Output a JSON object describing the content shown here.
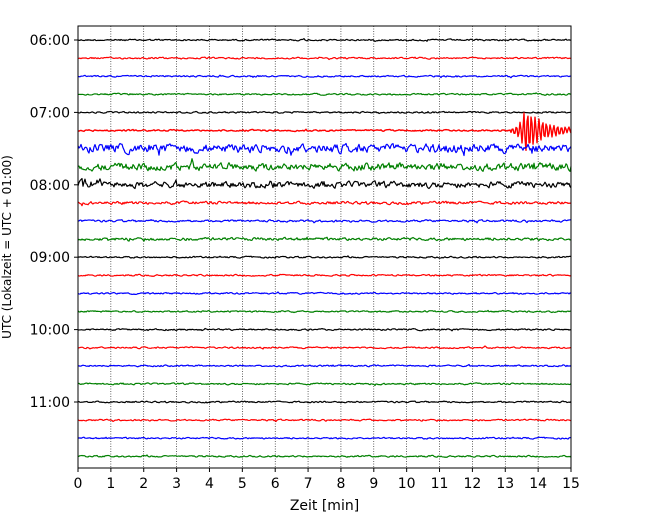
{
  "chart_data": {
    "type": "line",
    "title": "",
    "xlabel": "Zeit  [min]",
    "ylabel": "UTC (Lokalzeit = UTC + 01:00)",
    "xlim": [
      0,
      15
    ],
    "x_ticks": [
      "0",
      "1",
      "2",
      "3",
      "4",
      "5",
      "6",
      "7",
      "8",
      "9",
      "10",
      "11",
      "12",
      "13",
      "14",
      "15"
    ],
    "y_tick_labels": [
      "06:00",
      "07:00",
      "08:00",
      "09:00",
      "10:00",
      "11:00"
    ],
    "trace_interval_min": 15,
    "trace_count": 24,
    "trace_colors": [
      "#000000",
      "#ff0000",
      "#0000ff",
      "#008000"
    ],
    "grid": "vertical dotted lines at each minute",
    "events": [
      {
        "trace": 5,
        "x_start": 13.2,
        "x_end": 15,
        "peak_x": 13.6,
        "amplitude": "high",
        "note": "red trace spike near 07:15"
      },
      {
        "traces": [
          6,
          7,
          8
        ],
        "x_start": 0,
        "x_end": 15,
        "amplitude": "elevated"
      }
    ]
  }
}
